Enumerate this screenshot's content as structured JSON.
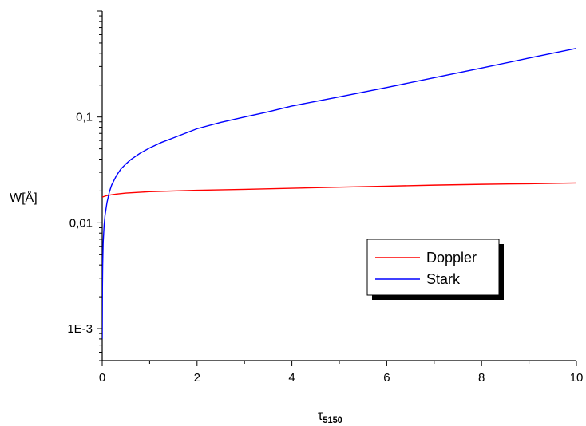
{
  "chart_data": {
    "type": "line",
    "ylabel": "W[Å]",
    "xlabel": {
      "main": "τ",
      "subscript": "5150"
    },
    "x_scale": "linear",
    "y_scale": "log",
    "xlim": [
      0,
      10
    ],
    "ylim": [
      0.0005,
      1
    ],
    "x_ticks": [
      0,
      2,
      4,
      6,
      8,
      10
    ],
    "x_tick_labels": [
      "0",
      "2",
      "4",
      "6",
      "8",
      "10"
    ],
    "y_ticks": [
      0.001,
      0.01,
      0.1
    ],
    "y_tick_labels": [
      "1E-3",
      "0,01",
      "0,1"
    ],
    "grid": false,
    "legend_position": "lower-right",
    "series": [
      {
        "name": "Doppler",
        "color": "#ff0000",
        "points": [
          [
            0,
            0.0175
          ],
          [
            0.05,
            0.0178
          ],
          [
            0.1,
            0.0181
          ],
          [
            0.2,
            0.0184
          ],
          [
            0.3,
            0.0187
          ],
          [
            0.5,
            0.0191
          ],
          [
            0.75,
            0.0194
          ],
          [
            1,
            0.0197
          ],
          [
            1.5,
            0.02
          ],
          [
            2,
            0.0203
          ],
          [
            3,
            0.0207
          ],
          [
            4,
            0.0212
          ],
          [
            5,
            0.0217
          ],
          [
            6,
            0.0222
          ],
          [
            7,
            0.0227
          ],
          [
            8,
            0.0231
          ],
          [
            9,
            0.0234
          ],
          [
            10,
            0.0238
          ]
        ]
      },
      {
        "name": "Stark",
        "color": "#0000ff",
        "points": [
          [
            0,
            0.0008
          ],
          [
            0.005,
            0.0025
          ],
          [
            0.01,
            0.004
          ],
          [
            0.02,
            0.0065
          ],
          [
            0.04,
            0.0095
          ],
          [
            0.06,
            0.0118
          ],
          [
            0.1,
            0.0155
          ],
          [
            0.15,
            0.0195
          ],
          [
            0.2,
            0.0228
          ],
          [
            0.3,
            0.028
          ],
          [
            0.4,
            0.0325
          ],
          [
            0.5,
            0.036
          ],
          [
            0.6,
            0.0395
          ],
          [
            0.8,
            0.0455
          ],
          [
            1,
            0.051
          ],
          [
            1.25,
            0.0575
          ],
          [
            1.5,
            0.0635
          ],
          [
            2,
            0.0775
          ],
          [
            2.5,
            0.089
          ],
          [
            3,
            0.1
          ],
          [
            3.5,
            0.112
          ],
          [
            4,
            0.127
          ],
          [
            5,
            0.155
          ],
          [
            6,
            0.19
          ],
          [
            7,
            0.235
          ],
          [
            8,
            0.29
          ],
          [
            9,
            0.36
          ],
          [
            10,
            0.445
          ]
        ]
      }
    ]
  }
}
